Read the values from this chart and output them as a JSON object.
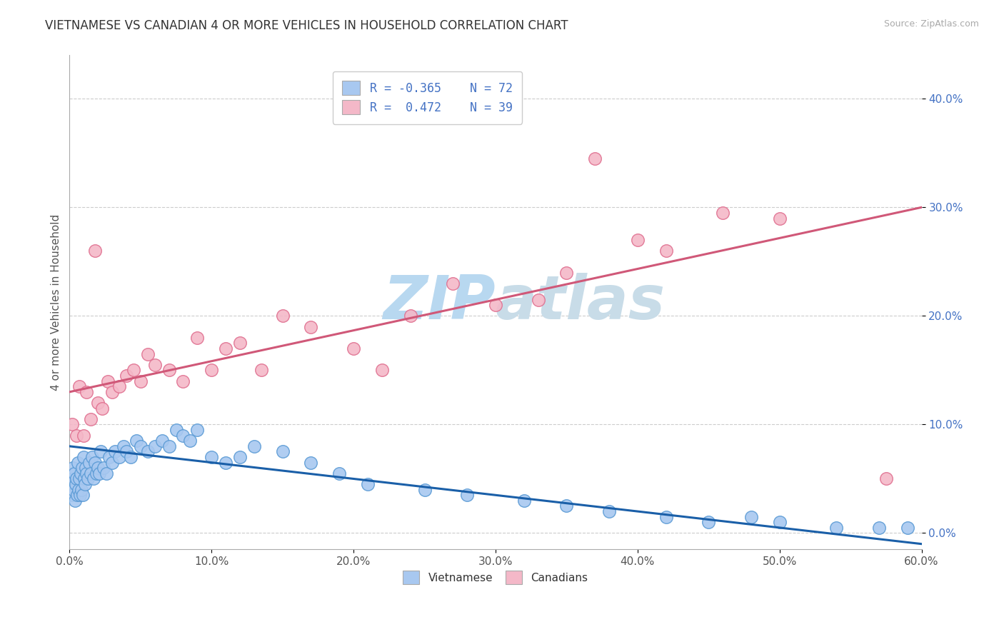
{
  "title": "VIETNAMESE VS CANADIAN 4 OR MORE VEHICLES IN HOUSEHOLD CORRELATION CHART",
  "source": "Source: ZipAtlas.com",
  "xlabel_label": "Vietnamese",
  "xlabel2_label": "Canadians",
  "ylabel": "4 or more Vehicles in Household",
  "xlim": [
    0.0,
    60.0
  ],
  "ylim": [
    -1.5,
    44.0
  ],
  "xticks": [
    0.0,
    10.0,
    20.0,
    30.0,
    40.0,
    50.0,
    60.0
  ],
  "yticks": [
    0.0,
    10.0,
    20.0,
    30.0,
    40.0
  ],
  "legend_r1": "R = -0.365",
  "legend_n1": "N = 72",
  "legend_r2": "R =  0.472",
  "legend_n2": "N = 39",
  "viet_color": "#a8c8f0",
  "viet_edge": "#5b9bd5",
  "viet_line": "#1a5fa8",
  "can_color": "#f4b8c8",
  "can_edge": "#e07090",
  "can_line": "#d05878",
  "watermark": "ZIPAtlas",
  "watermark_color": "#c8e0f8",
  "background": "#ffffff",
  "grid_color": "#cccccc",
  "viet_x": [
    0.1,
    0.15,
    0.2,
    0.25,
    0.3,
    0.35,
    0.4,
    0.45,
    0.5,
    0.55,
    0.6,
    0.65,
    0.7,
    0.75,
    0.8,
    0.85,
    0.9,
    0.95,
    1.0,
    1.05,
    1.1,
    1.15,
    1.2,
    1.3,
    1.4,
    1.5,
    1.6,
    1.7,
    1.8,
    1.9,
    2.0,
    2.1,
    2.2,
    2.4,
    2.6,
    2.8,
    3.0,
    3.2,
    3.5,
    3.8,
    4.0,
    4.3,
    4.7,
    5.0,
    5.5,
    6.0,
    6.5,
    7.0,
    7.5,
    8.0,
    8.5,
    9.0,
    10.0,
    11.0,
    12.0,
    13.0,
    15.0,
    17.0,
    19.0,
    21.0,
    25.0,
    28.0,
    32.0,
    35.0,
    38.0,
    42.0,
    45.0,
    48.0,
    50.0,
    54.0,
    57.0,
    59.0
  ],
  "viet_y": [
    4.5,
    5.0,
    3.5,
    6.0,
    4.0,
    5.5,
    3.0,
    4.5,
    5.0,
    3.5,
    6.5,
    4.0,
    5.0,
    3.5,
    5.5,
    4.0,
    6.0,
    3.5,
    7.0,
    5.0,
    4.5,
    6.0,
    5.5,
    5.0,
    6.5,
    5.5,
    7.0,
    5.0,
    6.5,
    5.5,
    6.0,
    5.5,
    7.5,
    6.0,
    5.5,
    7.0,
    6.5,
    7.5,
    7.0,
    8.0,
    7.5,
    7.0,
    8.5,
    8.0,
    7.5,
    8.0,
    8.5,
    8.0,
    9.5,
    9.0,
    8.5,
    9.5,
    7.0,
    6.5,
    7.0,
    8.0,
    7.5,
    6.5,
    5.5,
    4.5,
    4.0,
    3.5,
    3.0,
    2.5,
    2.0,
    1.5,
    1.0,
    1.5,
    1.0,
    0.5,
    0.5,
    0.5
  ],
  "can_x": [
    0.2,
    0.5,
    0.7,
    1.0,
    1.2,
    1.5,
    1.8,
    2.0,
    2.3,
    2.7,
    3.0,
    3.5,
    4.0,
    4.5,
    5.0,
    5.5,
    6.0,
    7.0,
    8.0,
    9.0,
    10.0,
    11.0,
    12.0,
    13.5,
    15.0,
    17.0,
    20.0,
    22.0,
    24.0,
    27.0,
    30.0,
    33.0,
    35.0,
    37.0,
    40.0,
    42.0,
    46.0,
    50.0,
    57.5
  ],
  "can_y": [
    10.0,
    9.0,
    13.5,
    9.0,
    13.0,
    10.5,
    26.0,
    12.0,
    11.5,
    14.0,
    13.0,
    13.5,
    14.5,
    15.0,
    14.0,
    16.5,
    15.5,
    15.0,
    14.0,
    18.0,
    15.0,
    17.0,
    17.5,
    15.0,
    20.0,
    19.0,
    17.0,
    15.0,
    20.0,
    23.0,
    21.0,
    21.5,
    24.0,
    34.5,
    27.0,
    26.0,
    29.5,
    29.0,
    5.0
  ]
}
